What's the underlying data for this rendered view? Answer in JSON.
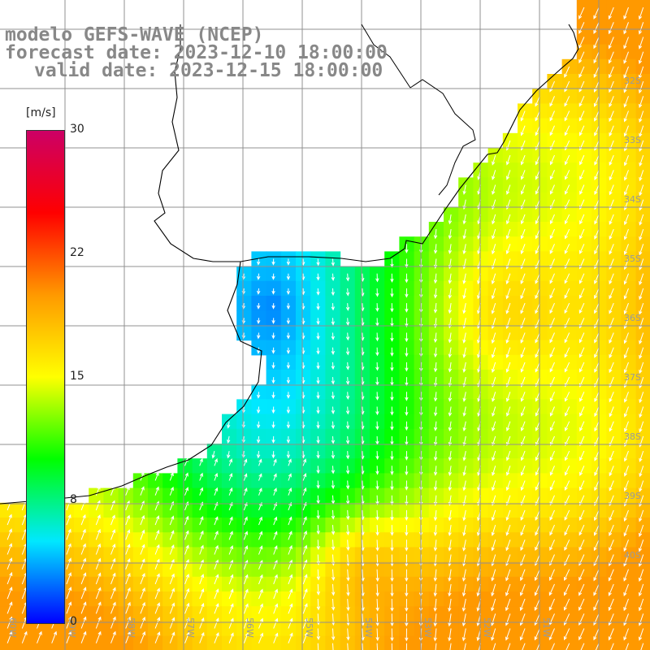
{
  "title": {
    "model": "modelo GEFS-WAVE (NCEP)",
    "forecast": "forecast date: 2023-12-10 18:00:00",
    "valid": "valid date: 2023-12-15 18:00:00"
  },
  "colorbar": {
    "unit": "[m/s]",
    "min": 0,
    "max": 30,
    "ticks": [
      "30",
      "22",
      "15",
      "8",
      "0"
    ],
    "tick_values": [
      30,
      22,
      15,
      8,
      0
    ],
    "colors": [
      "#0000ff",
      "#00e8ff",
      "#00ff00",
      "#ffff00",
      "#ff9900",
      "#ff0000",
      "#cc0066"
    ]
  },
  "map": {
    "lat_labels": [
      "32S",
      "33S",
      "34S",
      "35S",
      "36S",
      "37S",
      "38S",
      "39S",
      "40S"
    ],
    "lon_labels": [
      "60W",
      "59W",
      "58W",
      "57W",
      "56W",
      "55W",
      "54W",
      "53W",
      "52W",
      "51W"
    ],
    "land_color": "#ffffff",
    "grid_color": "#909090",
    "coast_color": "#000000",
    "arrow_color": "#ffffff"
  },
  "colors": {
    "title_text": "#888888"
  }
}
